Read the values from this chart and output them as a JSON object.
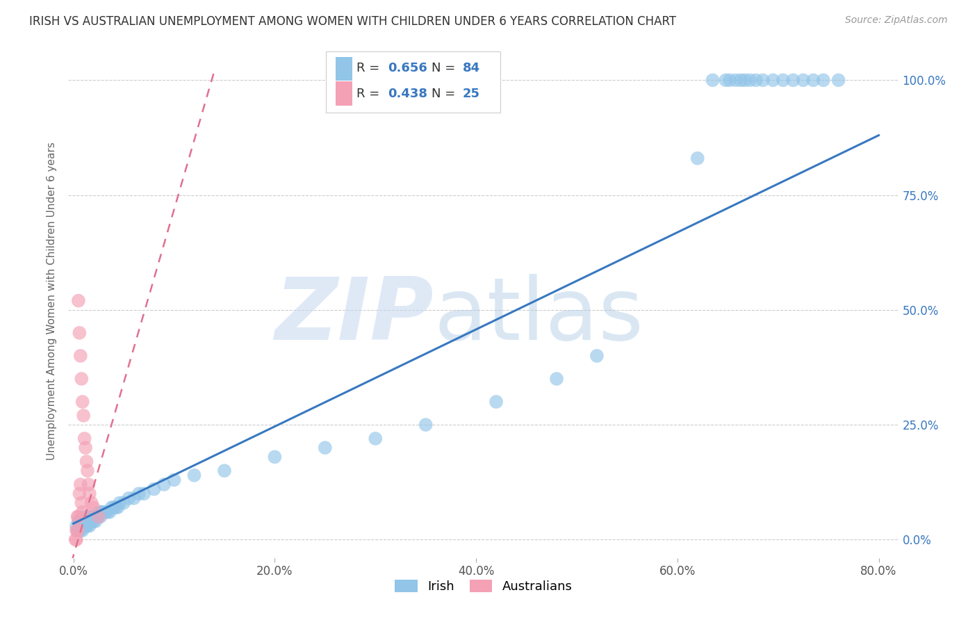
{
  "title": "IRISH VS AUSTRALIAN UNEMPLOYMENT AMONG WOMEN WITH CHILDREN UNDER 6 YEARS CORRELATION CHART",
  "source": "Source: ZipAtlas.com",
  "ylabel": "Unemployment Among Women with Children Under 6 years",
  "irish_R": 0.656,
  "irish_N": 84,
  "aus_R": 0.438,
  "aus_N": 25,
  "irish_color": "#92c5e8",
  "aus_color": "#f4a0b5",
  "irish_line_color": "#3878c0",
  "aus_line_color": "#e07090",
  "background_color": "#ffffff",
  "grid_color": "#cccccc",
  "title_color": "#333333",
  "right_tick_color": "#3878c0",
  "source_color": "#999999",
  "label_color": "#666666",
  "legend_text_color": "#333333",
  "legend_value_color": "#3878c0",
  "irish_x": [
    0.003,
    0.004,
    0.005,
    0.005,
    0.006,
    0.006,
    0.007,
    0.007,
    0.007,
    0.008,
    0.008,
    0.009,
    0.009,
    0.01,
    0.01,
    0.01,
    0.011,
    0.011,
    0.012,
    0.012,
    0.013,
    0.013,
    0.014,
    0.014,
    0.015,
    0.015,
    0.016,
    0.016,
    0.017,
    0.018,
    0.019,
    0.02,
    0.02,
    0.021,
    0.022,
    0.023,
    0.024,
    0.025,
    0.026,
    0.027,
    0.028,
    0.03,
    0.032,
    0.034,
    0.036,
    0.038,
    0.04,
    0.042,
    0.044,
    0.046,
    0.05,
    0.055,
    0.06,
    0.065,
    0.07,
    0.08,
    0.09,
    0.1,
    0.12,
    0.15,
    0.2,
    0.25,
    0.3,
    0.35,
    0.42,
    0.48,
    0.52,
    0.62,
    0.635,
    0.648,
    0.652,
    0.658,
    0.663,
    0.667,
    0.672,
    0.678,
    0.685,
    0.695,
    0.705,
    0.715,
    0.725,
    0.735,
    0.745,
    0.76
  ],
  "irish_y": [
    0.03,
    0.02,
    0.04,
    0.02,
    0.03,
    0.04,
    0.02,
    0.03,
    0.04,
    0.03,
    0.04,
    0.02,
    0.03,
    0.04,
    0.03,
    0.05,
    0.03,
    0.04,
    0.03,
    0.04,
    0.03,
    0.04,
    0.03,
    0.04,
    0.04,
    0.05,
    0.03,
    0.04,
    0.04,
    0.05,
    0.04,
    0.04,
    0.05,
    0.05,
    0.04,
    0.05,
    0.05,
    0.05,
    0.06,
    0.05,
    0.06,
    0.06,
    0.06,
    0.06,
    0.06,
    0.07,
    0.07,
    0.07,
    0.07,
    0.08,
    0.08,
    0.09,
    0.09,
    0.1,
    0.1,
    0.11,
    0.12,
    0.13,
    0.14,
    0.15,
    0.18,
    0.2,
    0.22,
    0.25,
    0.3,
    0.35,
    0.4,
    0.83,
    1.0,
    1.0,
    1.0,
    1.0,
    1.0,
    1.0,
    1.0,
    1.0,
    1.0,
    1.0,
    1.0,
    1.0,
    1.0,
    1.0,
    1.0,
    1.0
  ],
  "aus_x": [
    0.002,
    0.003,
    0.003,
    0.004,
    0.004,
    0.005,
    0.005,
    0.006,
    0.006,
    0.007,
    0.007,
    0.008,
    0.008,
    0.009,
    0.009,
    0.01,
    0.011,
    0.012,
    0.013,
    0.014,
    0.015,
    0.016,
    0.018,
    0.02,
    0.025
  ],
  "aus_y": [
    0.0,
    0.02,
    0.0,
    0.05,
    0.02,
    0.52,
    0.05,
    0.45,
    0.1,
    0.4,
    0.12,
    0.35,
    0.08,
    0.3,
    0.06,
    0.27,
    0.22,
    0.2,
    0.17,
    0.15,
    0.12,
    0.1,
    0.08,
    0.07,
    0.05
  ],
  "irish_line_x0": 0.0,
  "irish_line_x1": 0.8,
  "irish_line_y0": 0.035,
  "irish_line_y1": 0.88,
  "aus_line_x0": -0.002,
  "aus_line_x1": 0.14,
  "aus_line_y0": -0.05,
  "aus_line_y1": 1.02,
  "xlim_min": -0.005,
  "xlim_max": 0.82,
  "ylim_min": -0.04,
  "ylim_max": 1.08
}
